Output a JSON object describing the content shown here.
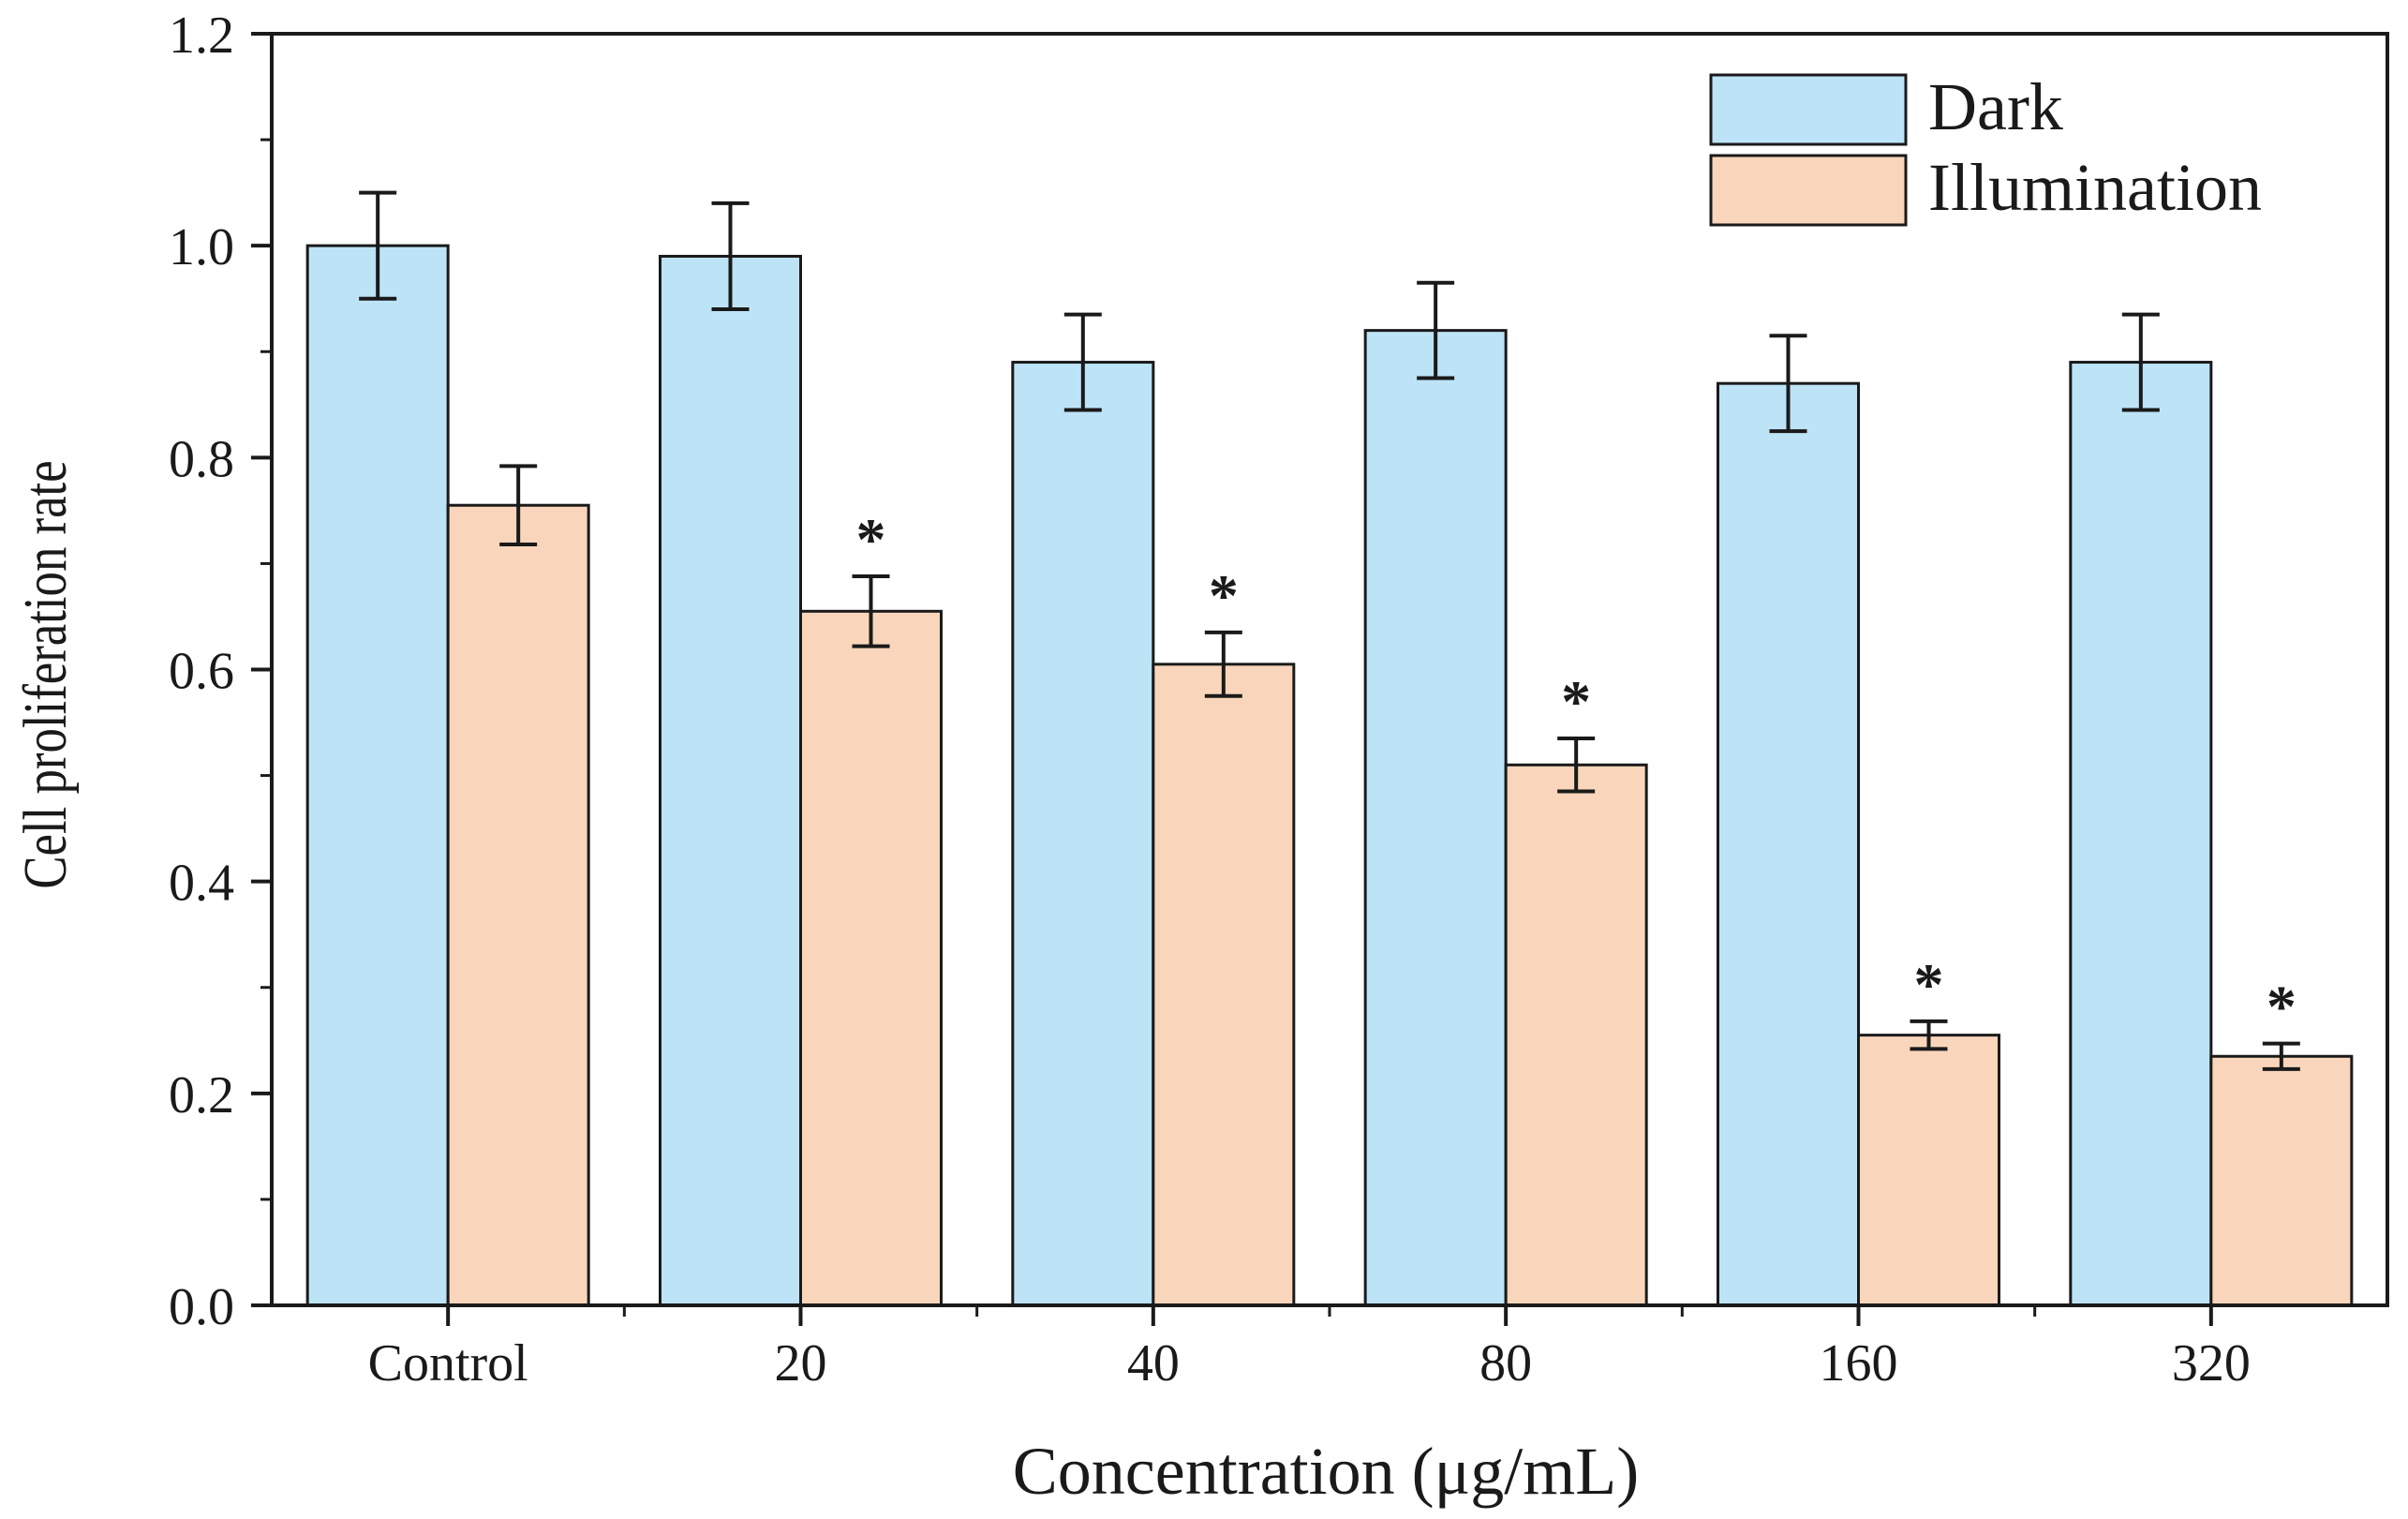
{
  "chart_data": {
    "type": "bar",
    "title": "",
    "xlabel": "Concentration (μg/mL)",
    "ylabel": "Cell proliferation rate",
    "ylim": [
      0,
      1.2
    ],
    "y_ticks": [
      "0.0",
      "0.2",
      "0.4",
      "0.6",
      "0.8",
      "1.0",
      "1.2"
    ],
    "y_tick_values": [
      0,
      0.2,
      0.4,
      0.6,
      0.8,
      1.0,
      1.2
    ],
    "categories": [
      "Control",
      "20",
      "40",
      "80",
      "160",
      "320"
    ],
    "series": [
      {
        "name": "Dark",
        "color": "#bde3f7",
        "values": [
          1.0,
          0.99,
          0.89,
          0.92,
          0.87,
          0.89
        ],
        "errors": [
          0.05,
          0.05,
          0.045,
          0.045,
          0.045,
          0.045
        ],
        "significance": [
          "",
          "",
          "",
          "",
          "",
          ""
        ]
      },
      {
        "name": "Illumination",
        "color": "#f9d6bb",
        "values": [
          0.755,
          0.655,
          0.605,
          0.51,
          0.255,
          0.235
        ],
        "errors": [
          0.037,
          0.033,
          0.03,
          0.025,
          0.013,
          0.012
        ],
        "significance": [
          "",
          "*",
          "*",
          "*",
          "*",
          "*"
        ]
      }
    ],
    "legend": [
      "Dark",
      "Illumination"
    ],
    "legend_position": "top-right",
    "grid": false
  }
}
